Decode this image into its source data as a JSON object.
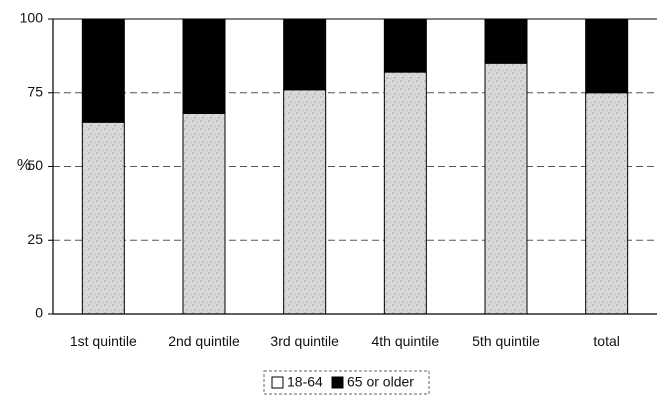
{
  "chart_data": {
    "type": "bar",
    "stacked": true,
    "percent_stacked": true,
    "categories": [
      "1st quintile",
      "2nd quintile",
      "3rd quintile",
      "4th quintile",
      "5th quintile",
      "total"
    ],
    "series": [
      {
        "name": "18-64",
        "values": [
          65,
          68,
          76,
          82,
          85,
          75
        ],
        "color": "#d6d6d6"
      },
      {
        "name": "65 or older",
        "values": [
          35,
          32,
          24,
          18,
          15,
          25
        ],
        "color": "#000000"
      }
    ],
    "ylabel": "%",
    "xlabel": "",
    "ylim": [
      0,
      100
    ],
    "yticks": [
      0,
      25,
      50,
      75,
      100
    ],
    "grid": "dashed horizontal",
    "legend": "bottom-center"
  }
}
